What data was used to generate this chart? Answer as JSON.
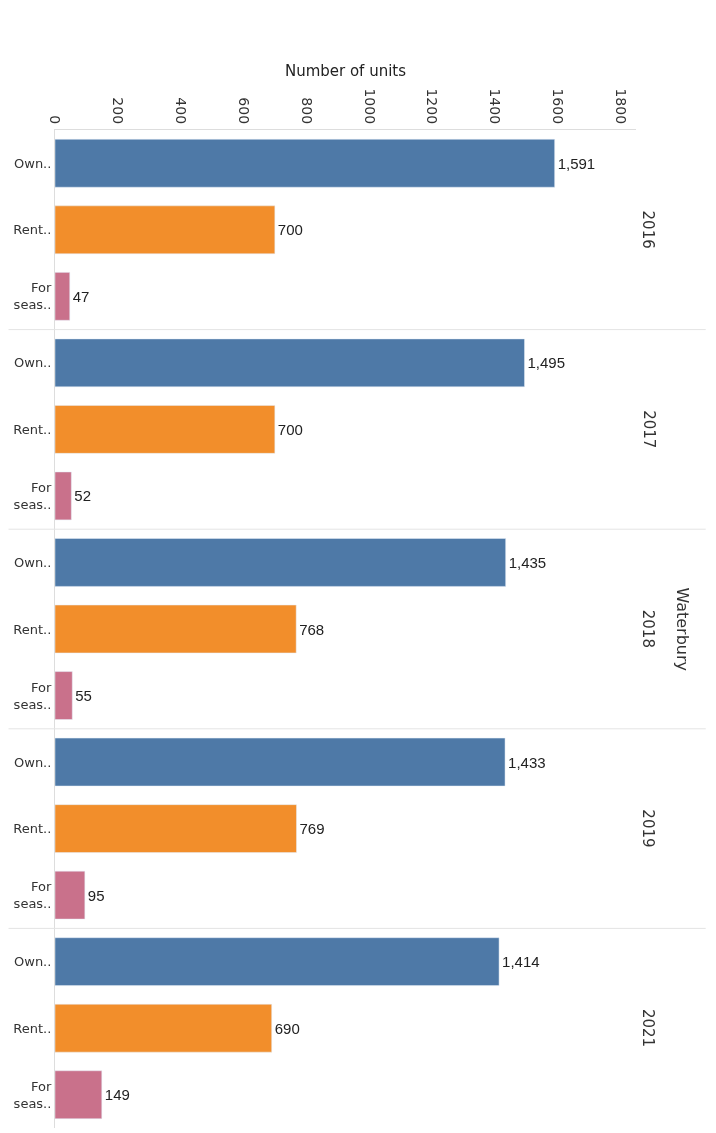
{
  "chart_data": {
    "type": "bar",
    "orientation": "horizontal",
    "xlabel": "Number of units",
    "categories": [
      "Own..",
      "Rent..",
      "For seas..",
      "Own..",
      "Rent..",
      "For seas..",
      "Own..",
      "Rent..",
      "For seas..",
      "Own..",
      "Rent..",
      "For seas..",
      "Own..",
      "Rent..",
      "For seas.."
    ],
    "values": [
      1591,
      700,
      47,
      1495,
      700,
      52,
      1435,
      768,
      55,
      1433,
      769,
      95,
      1414,
      690,
      149
    ],
    "value_labels": [
      "1,591",
      "700",
      "47",
      "1,495",
      "700",
      "52",
      "1,435",
      "768",
      "55",
      "1,433",
      "769",
      "95",
      "1,414",
      "690",
      "149"
    ],
    "colors": [
      "#4e79a7",
      "#f28e2b",
      "#c9718b",
      "#4e79a7",
      "#f28e2b",
      "#c9718b",
      "#4e79a7",
      "#f28e2b",
      "#c9718b",
      "#4e79a7",
      "#f28e2b",
      "#c9718b",
      "#4e79a7",
      "#f28e2b",
      "#c9718b"
    ],
    "xlim": [
      0,
      1850
    ],
    "xticks": [
      0,
      200,
      400,
      600,
      800,
      1000,
      1200,
      1400,
      1600,
      1800
    ],
    "annotations": [
      "2016",
      "2017",
      "2018",
      "2019",
      "2021",
      "Waterbury"
    ]
  }
}
